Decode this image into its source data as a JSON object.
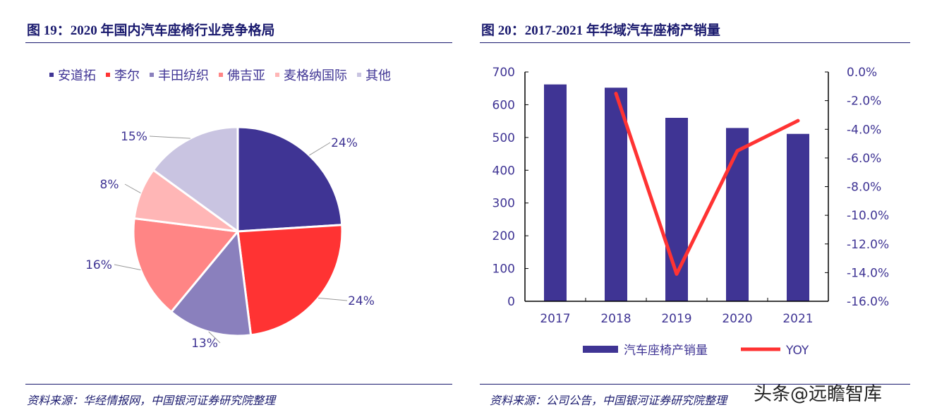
{
  "left": {
    "title": "图 19：2020 年国内汽车座椅行业竞争格局",
    "source": "资料来源：华经情报网，中国银河证券研究院整理"
  },
  "right": {
    "title": "图 20：2017-2021 年华域汽车座椅产销量",
    "source": "资料来源：公司公告，中国银河证券研究院整理"
  },
  "watermark": "头条@远瞻智库",
  "chart_data": [
    {
      "type": "pie",
      "labels": [
        "安道拓",
        "李尔",
        "丰田纺织",
        "佛吉亚",
        "麦格纳国际",
        "其他"
      ],
      "values": [
        24,
        24,
        13,
        16,
        8,
        15
      ],
      "data_labels": [
        "24%",
        "24%",
        "13%",
        "16%",
        "8%",
        "15%"
      ],
      "colors": [
        "#3f3494",
        "#ff3333",
        "#8a80bd",
        "#ff8585",
        "#ffb6b6",
        "#c9c4e1"
      ],
      "legend": "top"
    },
    {
      "type": "bar+line",
      "categories": [
        "2017",
        "2018",
        "2019",
        "2020",
        "2021"
      ],
      "series": [
        {
          "name": "汽车座椅产销量",
          "type": "bar",
          "axis": "left",
          "values": [
            662,
            652,
            560,
            529,
            511
          ],
          "color": "#3f3494"
        },
        {
          "name": "YOY",
          "type": "line",
          "axis": "right",
          "values": [
            null,
            -1.5,
            -14.1,
            -5.5,
            -3.4
          ],
          "color": "#ff3333"
        }
      ],
      "ylim": [
        0,
        700
      ],
      "yticks": [
        "0",
        "100",
        "200",
        "300",
        "400",
        "500",
        "600",
        "700"
      ],
      "y2lim": [
        -16,
        0
      ],
      "y2ticks": [
        "0.0%",
        "-2.0%",
        "-4.0%",
        "-6.0%",
        "-8.0%",
        "-10.0%",
        "-12.0%",
        "-14.0%",
        "-16.0%"
      ],
      "legend": "bottom",
      "grid": false
    }
  ]
}
